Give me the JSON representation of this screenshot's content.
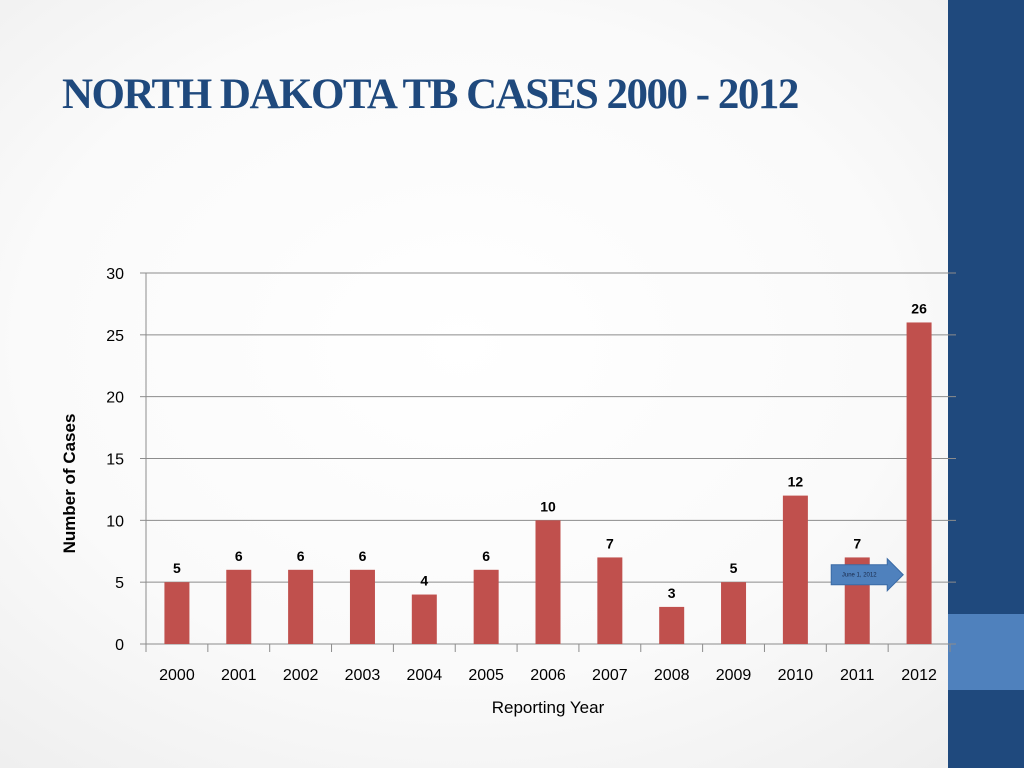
{
  "slide": {
    "title": "NORTH DAKOTA TB CASES 2000 - 2012",
    "colors": {
      "title": "#1f497d",
      "sidebar_dark": "#1f497d",
      "sidebar_light": "#4f81bd"
    }
  },
  "chart_data": {
    "type": "bar",
    "categories": [
      "2000",
      "2001",
      "2002",
      "2003",
      "2004",
      "2005",
      "2006",
      "2007",
      "2008",
      "2009",
      "2010",
      "2011",
      "2012"
    ],
    "values": [
      5,
      6,
      6,
      6,
      4,
      6,
      10,
      7,
      3,
      5,
      12,
      7,
      26
    ],
    "data_labels": [
      "5",
      "6",
      "6",
      "6",
      "4",
      "6",
      "10",
      "7",
      "3",
      "5",
      "12",
      "7",
      "26"
    ],
    "xlabel": "Reporting Year",
    "ylabel": "Number of Cases",
    "ylim": [
      0,
      30
    ],
    "yticks": [
      0,
      5,
      10,
      15,
      20,
      25,
      30
    ],
    "grid": true,
    "bar_color": "#c0504d",
    "annotation": {
      "text": "June 1, 2012",
      "category": "2011",
      "value": 5.6,
      "shape": "right-arrow",
      "color": "#4f81bd"
    }
  }
}
